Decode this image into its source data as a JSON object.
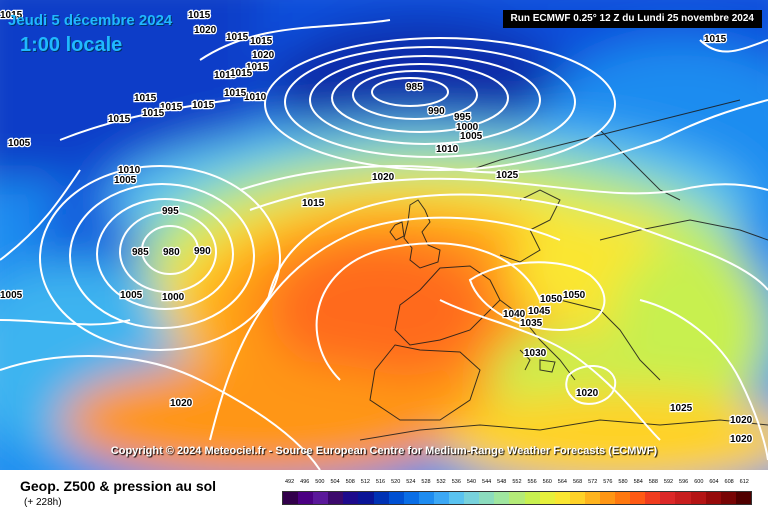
{
  "header": {
    "date": "Jeudi 5 décembre 2024",
    "time": "1:00 locale",
    "run": "Run ECMWF 0.25° 12 Z du Lundi 25 novembre 2024"
  },
  "copyright": "Copyright © 2024 Meteociel.fr - Source European Centre for Medium-Range Weather Forecasts (ECMWF)",
  "footer": {
    "title": "Geop. Z500 & pression au sol",
    "subtitle": "(+ 228h)"
  },
  "legend": {
    "values": [
      "492",
      "496",
      "500",
      "504",
      "508",
      "512",
      "516",
      "520",
      "524",
      "528",
      "532",
      "536",
      "540",
      "544",
      "548",
      "552",
      "556",
      "560",
      "564",
      "568",
      "572",
      "576",
      "580",
      "584",
      "588",
      "592",
      "596",
      "600",
      "604",
      "608",
      "612"
    ],
    "colors": [
      "#32004b",
      "#4b0082",
      "#5a189a",
      "#3c096c",
      "#1e0a8c",
      "#0a1496",
      "#0032b4",
      "#0050d2",
      "#0a6ee6",
      "#1e8cf0",
      "#3ca8f5",
      "#5ac3f0",
      "#78d2dc",
      "#8cdcbe",
      "#a0e6a0",
      "#b4eb78",
      "#c8f050",
      "#e6f03c",
      "#fae632",
      "#ffd228",
      "#ffb41e",
      "#ff9614",
      "#ff780f",
      "#ff5a14",
      "#f03c1e",
      "#dc2828",
      "#c81e1e",
      "#b41414",
      "#960a0a",
      "#780505",
      "#500000"
    ]
  },
  "isobar_labels": [
    "1015",
    "1015",
    "1020",
    "1015",
    "1015",
    "1020",
    "1015",
    "1015",
    "1015",
    "1010",
    "1015",
    "1015",
    "1015",
    "1015",
    "1015",
    "1015",
    "1005",
    "1010",
    "1005",
    "985",
    "990",
    "995",
    "1000",
    "1005",
    "1010",
    "1020",
    "1015",
    "1025",
    "1015",
    "995",
    "985",
    "980",
    "990",
    "1005",
    "1000",
    "1005",
    "1050",
    "1050",
    "1040",
    "1045",
    "1035",
    "1030",
    "1020",
    "1025",
    "1020",
    "1020",
    "1020"
  ]
}
